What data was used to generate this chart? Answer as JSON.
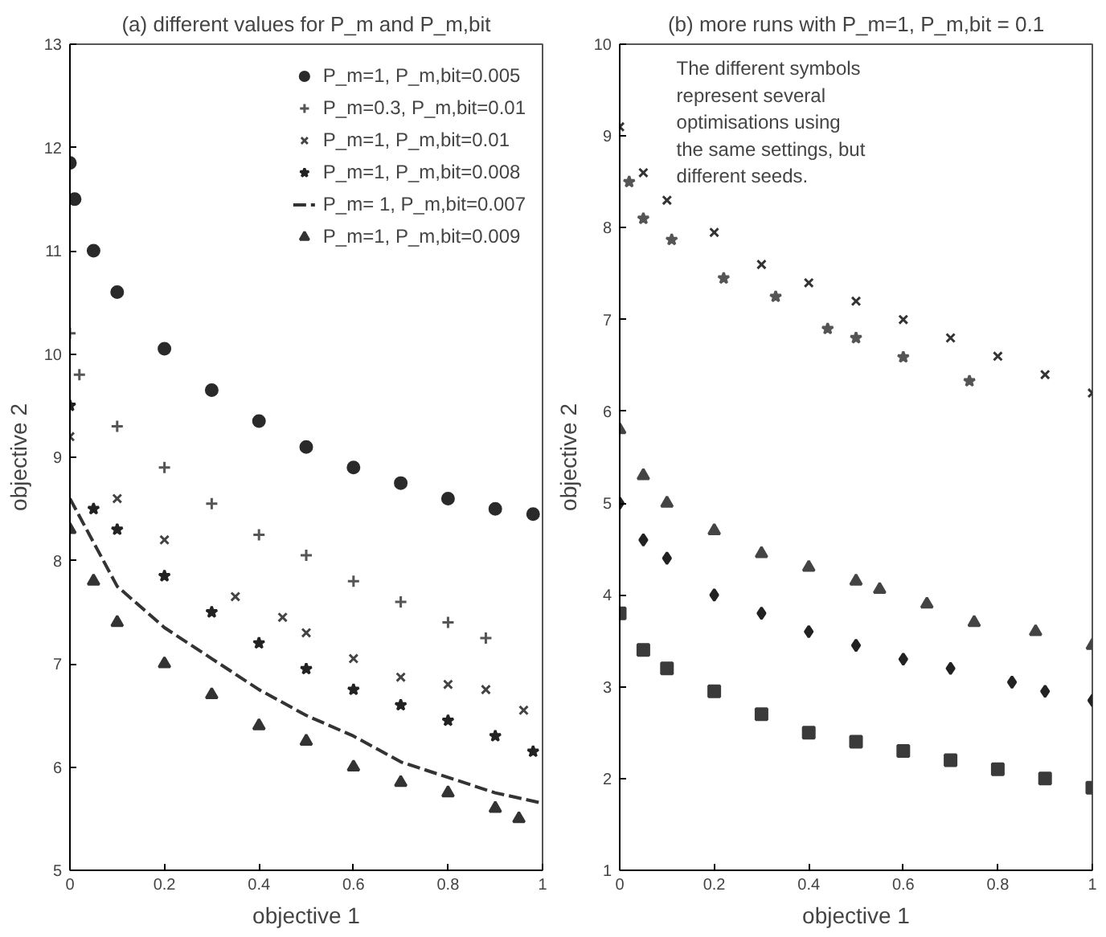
{
  "chart_data": [
    {
      "type": "scatter",
      "title": "(a) different values for P_m and P_m,bit",
      "xlabel": "objective 1",
      "ylabel": "objective 2",
      "xlim": [
        0,
        1
      ],
      "ylim": [
        5,
        13
      ],
      "xticks": [
        0,
        0.2,
        0.4,
        0.6,
        0.8,
        1
      ],
      "yticks": [
        5,
        6,
        7,
        8,
        9,
        10,
        11,
        12,
        13
      ],
      "grid": false,
      "legend": "top right",
      "series": [
        {
          "name": "P_m=1, P_m,bit=0.005",
          "marker": "circle",
          "color": "#2a2a2a",
          "x": [
            0,
            0.01,
            0.05,
            0.1,
            0.2,
            0.3,
            0.4,
            0.5,
            0.6,
            0.7,
            0.8,
            0.9,
            0.98
          ],
          "values": [
            11.85,
            11.5,
            11.0,
            10.6,
            10.05,
            9.65,
            9.35,
            9.1,
            8.9,
            8.75,
            8.6,
            8.5,
            8.45
          ]
        },
        {
          "name": "P_m=0.3, P_m,bit=0.01",
          "marker": "cross",
          "color": "#555555",
          "x": [
            0,
            0.02,
            0.1,
            0.2,
            0.3,
            0.4,
            0.5,
            0.6,
            0.7,
            0.8,
            0.88
          ],
          "values": [
            10.2,
            9.8,
            9.3,
            8.9,
            8.55,
            8.25,
            8.05,
            7.8,
            7.6,
            7.4,
            7.25
          ]
        },
        {
          "name": "P_m=1, P_m,bit=0.01",
          "marker": "x",
          "color": "#444444",
          "x": [
            0,
            0.1,
            0.2,
            0.35,
            0.45,
            0.5,
            0.6,
            0.7,
            0.8,
            0.88,
            0.96
          ],
          "values": [
            9.2,
            8.6,
            8.2,
            7.65,
            7.45,
            7.3,
            7.05,
            6.87,
            6.8,
            6.75,
            6.55
          ]
        },
        {
          "name": "P_m=1, P_m,bit=0.008",
          "marker": "star",
          "color": "#222222",
          "x": [
            0,
            0.05,
            0.1,
            0.2,
            0.3,
            0.4,
            0.5,
            0.6,
            0.7,
            0.8,
            0.9,
            0.98
          ],
          "values": [
            9.5,
            8.5,
            8.3,
            7.85,
            7.5,
            7.2,
            6.95,
            6.75,
            6.6,
            6.45,
            6.3,
            6.15
          ]
        },
        {
          "name": "P_m= 1, P_m,bit=0.007",
          "type": "line",
          "line_style": "dashed",
          "color": "#333333",
          "x": [
            0,
            0.1,
            0.2,
            0.3,
            0.4,
            0.5,
            0.6,
            0.7,
            0.8,
            0.9,
            1.0
          ],
          "values": [
            8.6,
            7.75,
            7.35,
            7.05,
            6.75,
            6.5,
            6.3,
            6.05,
            5.9,
            5.75,
            5.65
          ]
        },
        {
          "name": "P_m=1, P_m,bit=0.009",
          "marker": "triangle",
          "color": "#333333",
          "x": [
            0,
            0.05,
            0.1,
            0.2,
            0.3,
            0.4,
            0.5,
            0.6,
            0.7,
            0.8,
            0.9,
            0.95
          ],
          "values": [
            8.3,
            7.8,
            7.4,
            7.0,
            6.7,
            6.4,
            6.25,
            6.0,
            5.85,
            5.75,
            5.6,
            5.5
          ]
        }
      ]
    },
    {
      "type": "scatter",
      "title": "(b) more runs with P_m=1, P_m,bit = 0.1",
      "xlabel": "objective 1",
      "ylabel": "objective 2",
      "xlim": [
        0,
        1
      ],
      "ylim": [
        1,
        10
      ],
      "xticks": [
        0,
        0.2,
        0.4,
        0.6,
        0.8,
        1
      ],
      "yticks": [
        1,
        2,
        3,
        4,
        5,
        6,
        7,
        8,
        9,
        10
      ],
      "grid": false,
      "annotations": [
        "The different symbols\nrepresent several\noptimisations using\nthe same settings, but\ndifferent seeds."
      ],
      "series": [
        {
          "marker": "x",
          "color": "#333333",
          "x": [
            0,
            0.05,
            0.1,
            0.2,
            0.3,
            0.4,
            0.5,
            0.6,
            0.7,
            0.8,
            0.9,
            1
          ],
          "values": [
            9.1,
            8.6,
            8.3,
            7.95,
            7.6,
            7.4,
            7.2,
            7.0,
            6.8,
            6.6,
            6.4,
            6.2
          ]
        },
        {
          "marker": "star",
          "color": "#555555",
          "x": [
            0.02,
            0.05,
            0.11,
            0.22,
            0.33,
            0.44,
            0.5,
            0.6,
            0.74
          ],
          "values": [
            8.5,
            8.1,
            7.87,
            7.45,
            7.25,
            6.9,
            6.8,
            6.59,
            6.33
          ]
        },
        {
          "marker": "triangle",
          "color": "#444444",
          "x": [
            0,
            0.05,
            0.1,
            0.2,
            0.3,
            0.4,
            0.5,
            0.55,
            0.65,
            0.75,
            0.88,
            1
          ],
          "values": [
            5.8,
            5.3,
            5.0,
            4.7,
            4.45,
            4.3,
            4.15,
            4.06,
            3.9,
            3.7,
            3.6,
            3.45
          ]
        },
        {
          "marker": "diamond",
          "color": "#222222",
          "x": [
            0,
            0.05,
            0.1,
            0.2,
            0.3,
            0.4,
            0.5,
            0.6,
            0.7,
            0.83,
            0.9,
            1
          ],
          "values": [
            5.0,
            4.6,
            4.4,
            4.0,
            3.8,
            3.6,
            3.45,
            3.3,
            3.2,
            3.05,
            2.95,
            2.85
          ]
        },
        {
          "marker": "square",
          "color": "#3a3a3a",
          "x": [
            0,
            0.05,
            0.1,
            0.2,
            0.3,
            0.4,
            0.5,
            0.6,
            0.7,
            0.8,
            0.9,
            1
          ],
          "values": [
            3.8,
            3.4,
            3.2,
            2.95,
            2.7,
            2.5,
            2.4,
            2.3,
            2.2,
            2.1,
            2.0,
            1.9
          ]
        }
      ]
    }
  ]
}
